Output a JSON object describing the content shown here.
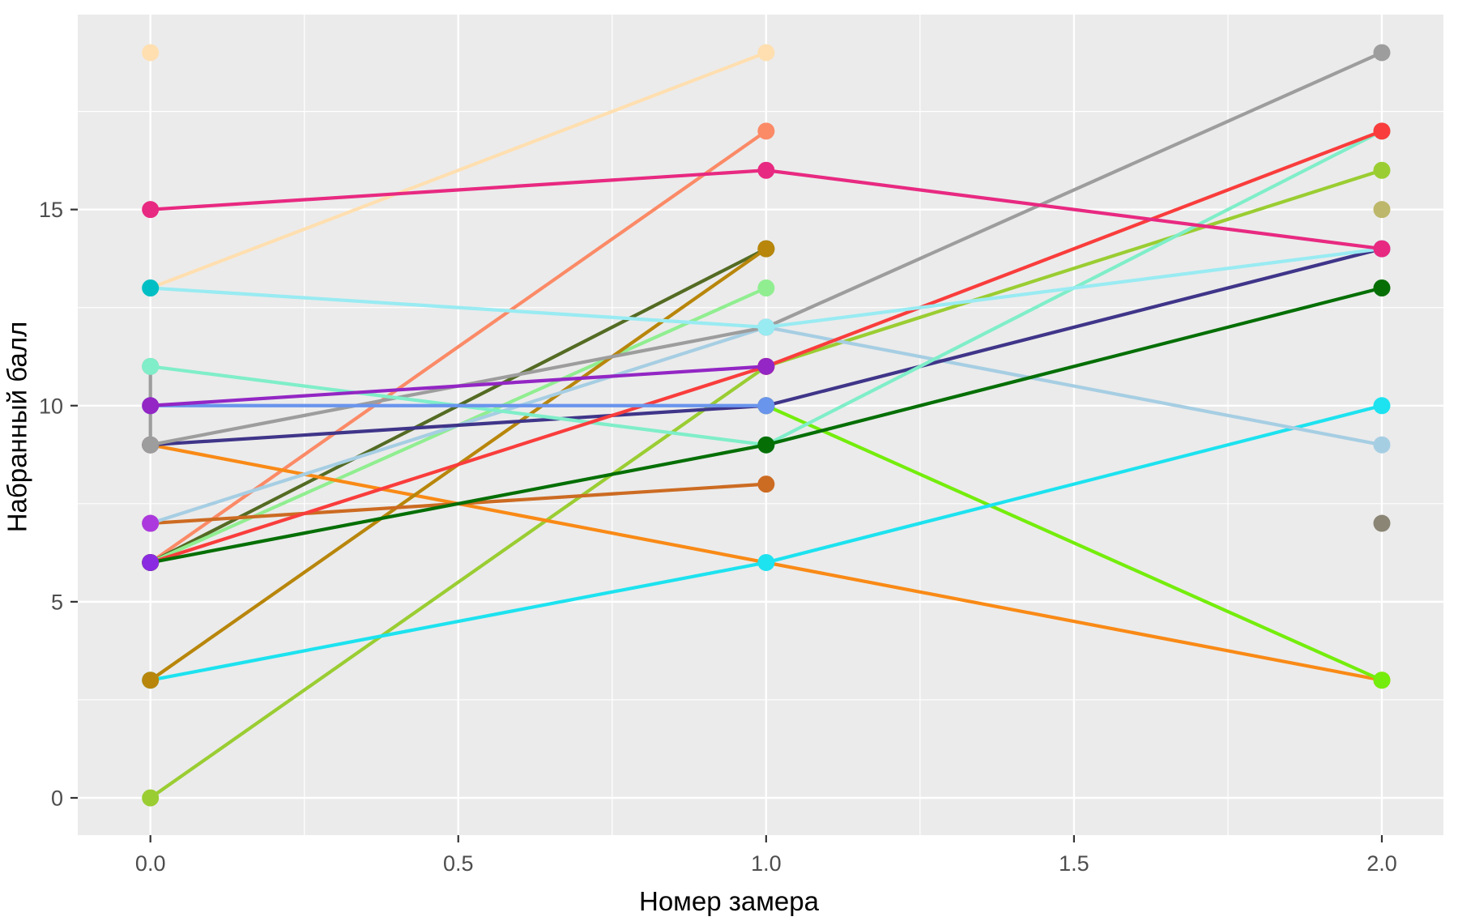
{
  "chart_data": {
    "type": "line",
    "title": "",
    "xlabel": "Номер замера",
    "ylabel": "Набранный балл",
    "x_tick_labels": [
      "0.0",
      "0.5",
      "1.0",
      "1.5",
      "2.0"
    ],
    "x_tick_values": [
      0,
      0.5,
      1,
      1.5,
      2
    ],
    "y_tick_labels": [
      "0",
      "5",
      "10",
      "15"
    ],
    "y_tick_values": [
      0,
      5,
      10,
      15
    ],
    "x_minor": [
      0.25,
      0.75,
      1.25,
      1.75
    ],
    "y_minor": [
      2.5,
      7.5,
      12.5,
      17.5
    ],
    "xlim": [
      -0.118,
      2.1
    ],
    "ylim": [
      -0.95,
      19.97
    ],
    "grid": true,
    "legend": false,
    "panel_bg": "#EBEBEB",
    "grid_color": "#FFFFFF",
    "tick_color": "#333333",
    "tick_label_color": "#4D4D4D",
    "axis_title_color": "#000000",
    "series": [
      {
        "name": "subject-peach-single",
        "color": "#FFDFB0",
        "points": [
          [
            0,
            19
          ]
        ]
      },
      {
        "name": "subject-peach",
        "color": "#FFDFB0",
        "points": [
          [
            0,
            13
          ],
          [
            1,
            19
          ]
        ]
      },
      {
        "name": "subject-coral",
        "color": "#FB8A67",
        "points": [
          [
            0,
            6
          ],
          [
            1,
            17
          ]
        ]
      },
      {
        "name": "subject-darkolivegreen",
        "color": "#546B23",
        "points": [
          [
            0,
            6
          ],
          [
            1,
            14
          ]
        ]
      },
      {
        "name": "subject-lightgreen",
        "color": "#90EE90",
        "points": [
          [
            0,
            6
          ],
          [
            1,
            13
          ]
        ]
      },
      {
        "name": "subject-yellowgreen",
        "color": "#9ACD32",
        "points": [
          [
            0,
            0
          ],
          [
            1,
            11
          ],
          [
            2,
            16
          ]
        ]
      },
      {
        "name": "subject-orange",
        "color": "#F98A16",
        "points": [
          [
            0,
            9
          ],
          [
            2,
            3
          ]
        ]
      },
      {
        "name": "subject-lawngreen",
        "color": "#74ED0C",
        "points": [
          [
            1,
            10
          ],
          [
            2,
            3
          ]
        ]
      },
      {
        "name": "subject-cyan",
        "color": "#1DE2EF",
        "points": [
          [
            0,
            3
          ],
          [
            1,
            6
          ],
          [
            2,
            10
          ]
        ]
      },
      {
        "name": "subject-darkgoldenrod",
        "color": "#B8860B",
        "points": [
          [
            0,
            3
          ],
          [
            1,
            14
          ]
        ]
      },
      {
        "name": "subject-chocolate",
        "color": "#CC6B22",
        "points": [
          [
            0,
            7
          ],
          [
            1,
            8
          ]
        ]
      },
      {
        "name": "subject-lightblue",
        "color": "#A6CEE3",
        "points": [
          [
            0,
            7
          ],
          [
            1,
            12
          ],
          [
            2,
            9
          ]
        ]
      },
      {
        "name": "subject-orchid-single",
        "color": "#AC39DD",
        "points": [
          [
            0,
            7
          ]
        ]
      },
      {
        "name": "subject-darkslateblue",
        "color": "#3F3589",
        "points": [
          [
            0,
            9
          ],
          [
            1,
            10
          ],
          [
            2,
            14
          ]
        ]
      },
      {
        "name": "subject-grayolive-single",
        "color": "#8A8575",
        "points": [
          [
            2,
            7
          ]
        ]
      },
      {
        "name": "subject-gray",
        "color": "#9D9D9D",
        "points": [
          [
            0,
            11
          ],
          [
            0,
            9
          ],
          [
            1,
            12
          ],
          [
            2,
            19
          ]
        ]
      },
      {
        "name": "subject-aquamarine",
        "color": "#7FEEC9",
        "points": [
          [
            0,
            11
          ],
          [
            1,
            9
          ],
          [
            2,
            17
          ]
        ]
      },
      {
        "name": "subject-red",
        "color": "#F93D3C",
        "points": [
          [
            0,
            6
          ],
          [
            1,
            11
          ],
          [
            2,
            17
          ]
        ]
      },
      {
        "name": "subject-darkgreen",
        "color": "#056F05",
        "points": [
          [
            0,
            6
          ],
          [
            1,
            9
          ],
          [
            2,
            13
          ]
        ]
      },
      {
        "name": "subject-blueviolet-single",
        "color": "#8A2BE2",
        "points": [
          [
            0,
            6
          ]
        ]
      },
      {
        "name": "subject-cornflowerblue",
        "color": "#6A95ED",
        "points": [
          [
            0,
            10
          ],
          [
            1,
            10
          ]
        ]
      },
      {
        "name": "subject-purple",
        "color": "#9326C4",
        "points": [
          [
            0,
            10
          ],
          [
            1,
            11
          ]
        ]
      },
      {
        "name": "subject-paleturquoise",
        "color": "#99EBF2",
        "points": [
          [
            0,
            13
          ],
          [
            1,
            12
          ],
          [
            2,
            14
          ]
        ]
      },
      {
        "name": "subject-teal-single",
        "color": "#00BFC4",
        "points": [
          [
            0,
            13
          ]
        ]
      },
      {
        "name": "subject-magenta",
        "color": "#E82981",
        "points": [
          [
            0,
            15
          ],
          [
            1,
            16
          ],
          [
            2,
            14
          ]
        ]
      },
      {
        "name": "subject-darkkhaki-single",
        "color": "#BDB76B",
        "points": [
          [
            2,
            15
          ]
        ]
      }
    ]
  }
}
